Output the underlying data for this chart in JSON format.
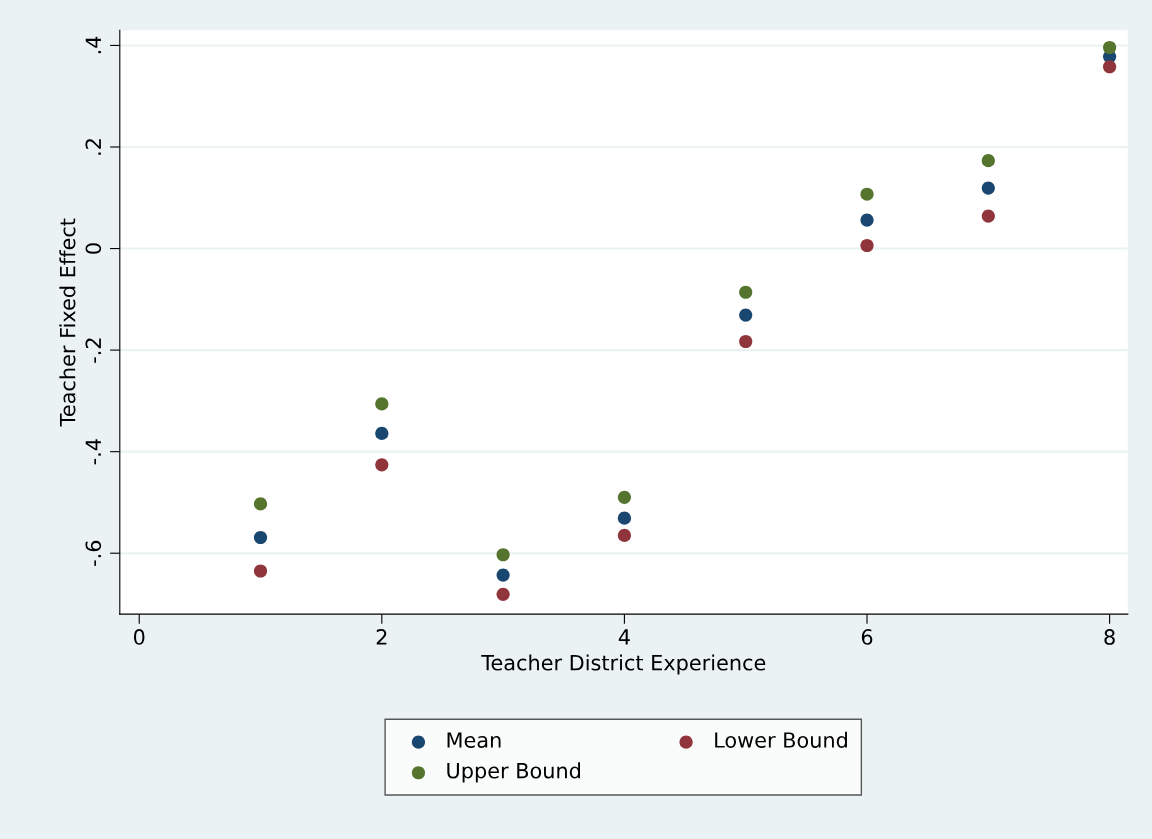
{
  "chart_data": {
    "type": "scatter",
    "xlabel": "Teacher District Experience",
    "ylabel": "Teacher Fixed Effect",
    "x": [
      1,
      2,
      3,
      4,
      5,
      6,
      7,
      8
    ],
    "series": [
      {
        "name": "Mean",
        "color": "#1a476f",
        "values": [
          -0.569,
          -0.364,
          -0.643,
          -0.531,
          -0.131,
          0.056,
          0.119,
          0.378
        ]
      },
      {
        "name": "Upper Bound",
        "color": "#55752f",
        "values": [
          -0.503,
          -0.306,
          -0.603,
          -0.49,
          -0.086,
          0.107,
          0.173,
          0.396
        ]
      },
      {
        "name": "Lower Bound",
        "color": "#90353b",
        "values": [
          -0.635,
          -0.426,
          -0.681,
          -0.565,
          -0.183,
          0.006,
          0.064,
          0.358
        ]
      }
    ],
    "xlim": [
      -0.16,
      8.15
    ],
    "xticks": [
      0,
      2,
      4,
      6,
      8
    ],
    "ylim": [
      -0.72,
      0.43
    ],
    "yticks": [
      {
        "value": -0.6,
        "label": "-.6"
      },
      {
        "value": -0.4,
        "label": "-.4"
      },
      {
        "value": -0.2,
        "label": "-.2"
      },
      {
        "value": 0,
        "label": "0"
      },
      {
        "value": 0.2,
        "label": ".2"
      },
      {
        "value": 0.4,
        "label": ".4"
      }
    ],
    "grid": "y",
    "legend": "bottom",
    "marker": "circle"
  }
}
